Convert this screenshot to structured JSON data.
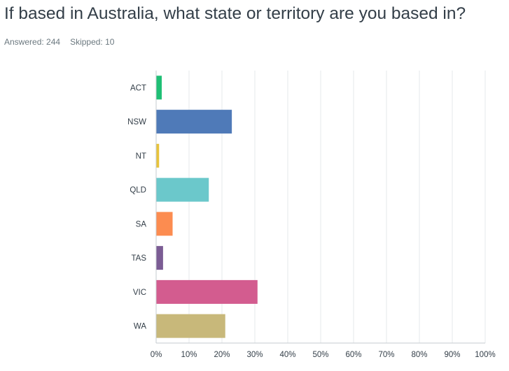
{
  "question": {
    "title": "If based in Australia, what state or territory are you based in?"
  },
  "summary": {
    "answered_label": "Answered: 244",
    "skipped_label": "Skipped: 10"
  },
  "chart_data": {
    "type": "bar",
    "orientation": "horizontal",
    "title": "If based in Australia, what state or territory are you based in?",
    "xlabel": "",
    "ylabel": "",
    "categories": [
      "ACT",
      "NSW",
      "NT",
      "QLD",
      "SA",
      "TAS",
      "VIC",
      "WA"
    ],
    "values": [
      1.6,
      22.9,
      0.8,
      15.9,
      4.9,
      2.0,
      30.7,
      20.9
    ],
    "colors": [
      "#1fbf75",
      "#4f7ab8",
      "#e8c33b",
      "#6bc8cb",
      "#fc8c50",
      "#7b5c94",
      "#d35c8f",
      "#c8b87a"
    ],
    "xlim": [
      0,
      100
    ],
    "xticks": [
      "0%",
      "10%",
      "20%",
      "30%",
      "40%",
      "50%",
      "60%",
      "70%",
      "80%",
      "90%",
      "100%"
    ],
    "tick_values": [
      0,
      10,
      20,
      30,
      40,
      50,
      60,
      70,
      80,
      90,
      100
    ],
    "grid": true,
    "legend": "none"
  }
}
